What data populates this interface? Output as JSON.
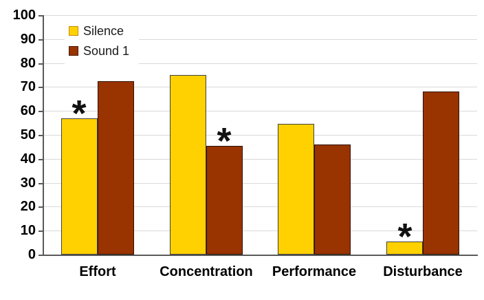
{
  "chart_data": {
    "type": "bar",
    "title": "",
    "xlabel": "",
    "ylabel": "",
    "categories": [
      "Effort",
      "Concentration",
      "Performance",
      "Disturbance"
    ],
    "series": [
      {
        "name": "Silence",
        "color": "#FFD100",
        "border_color": "#404040",
        "swatch_border": "#C78A00",
        "values": [
          57,
          75,
          54.5,
          5.5
        ]
      },
      {
        "name": "Sound 1",
        "color": "#993300",
        "border_color": "#2B1000",
        "swatch_border": "#4A1A00",
        "values": [
          72.5,
          45.5,
          46,
          68
        ]
      }
    ],
    "annotations": [
      {
        "category": 0,
        "series": 0,
        "symbol": "*"
      },
      {
        "category": 1,
        "series": 1,
        "symbol": "*"
      },
      {
        "category": 3,
        "series": 0,
        "symbol": "*"
      }
    ],
    "ylim": [
      0,
      100
    ],
    "yticks": [
      0,
      10,
      20,
      30,
      40,
      50,
      60,
      70,
      80,
      90,
      100
    ],
    "grid": true,
    "legend_position": "top-left",
    "colors": {
      "gridline": "#d9d9d9",
      "axis": "#595959",
      "tick_label": "#000000"
    }
  }
}
